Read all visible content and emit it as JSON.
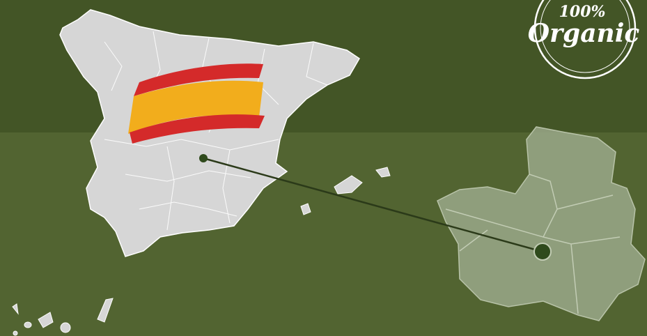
{
  "badge": {
    "top": "100%",
    "bottom": "Organic"
  }
}
